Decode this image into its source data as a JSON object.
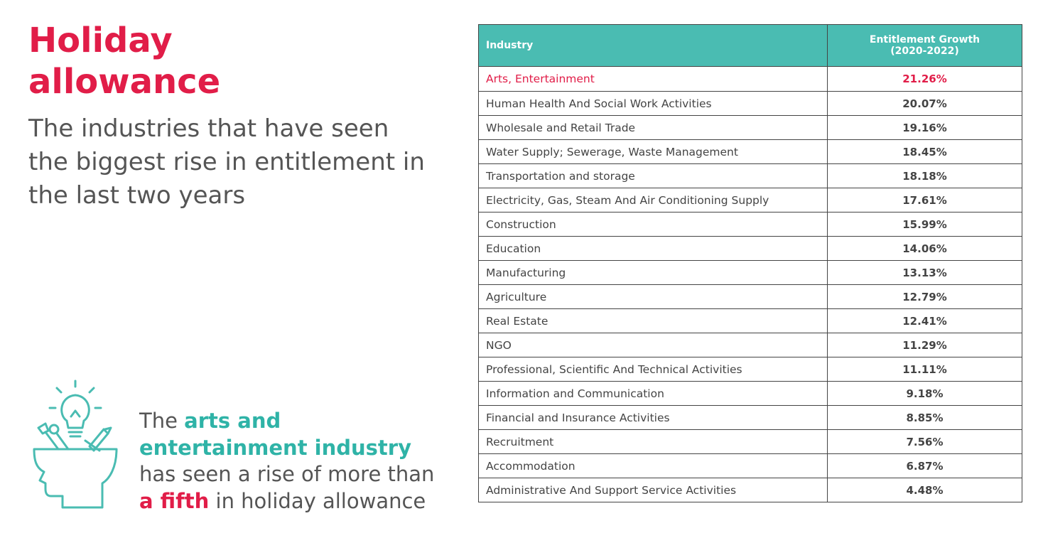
{
  "header": {
    "title_line1": "Holiday",
    "title_line2": "allowance",
    "subtitle": "The industries that have seen the biggest rise in entitlement in the last two years"
  },
  "callout": {
    "part1": "The ",
    "highlight1a": "arts and",
    "highlight1b": "entertainment industry",
    "part2": "has seen a rise of more than",
    "highlight2": "a fifth",
    "part3": " in holiday allowance"
  },
  "icons": {
    "illustration": "head-with-lightbulb-and-tools-icon"
  },
  "colors": {
    "accent_red": "#e11d48",
    "teal": "#4abcb2",
    "teal_text": "#2fb3a7",
    "body_text": "#555555"
  },
  "chart_data": {
    "type": "table",
    "columns": [
      "Industry",
      "Entitlement Growth",
      "(2020-2022)"
    ],
    "rows": [
      {
        "industry": "Arts, Entertainment",
        "growth": "21.26%",
        "value": 21.26
      },
      {
        "industry": "Human Health And Social Work Activities",
        "growth": "20.07%",
        "value": 20.07
      },
      {
        "industry": "Wholesale and Retail Trade",
        "growth": "19.16%",
        "value": 19.16
      },
      {
        "industry": "Water Supply; Sewerage, Waste Management",
        "growth": "18.45%",
        "value": 18.45
      },
      {
        "industry": "Transportation and storage",
        "growth": "18.18%",
        "value": 18.18
      },
      {
        "industry": "Electricity, Gas, Steam And Air Conditioning Supply",
        "growth": "17.61%",
        "value": 17.61
      },
      {
        "industry": "Construction",
        "growth": "15.99%",
        "value": 15.99
      },
      {
        "industry": "Education",
        "growth": "14.06%",
        "value": 14.06
      },
      {
        "industry": "Manufacturing",
        "growth": "13.13%",
        "value": 13.13
      },
      {
        "industry": "Agriculture",
        "growth": "12.79%",
        "value": 12.79
      },
      {
        "industry": "Real Estate",
        "growth": "12.41%",
        "value": 12.41
      },
      {
        "industry": "NGO",
        "growth": "11.29%",
        "value": 11.29
      },
      {
        "industry": "Professional, Scientific And Technical Activities",
        "growth": "11.11%",
        "value": 11.11
      },
      {
        "industry": "Information and Communication",
        "growth": "9.18%",
        "value": 9.18
      },
      {
        "industry": "Financial and Insurance Activities",
        "growth": "8.85%",
        "value": 8.85
      },
      {
        "industry": "Recruitment",
        "growth": "7.56%",
        "value": 7.56
      },
      {
        "industry": "Accommodation",
        "growth": "6.87%",
        "value": 6.87
      },
      {
        "industry": "Administrative And Support Service Activities",
        "growth": "4.48%",
        "value": 4.48
      }
    ],
    "highlight_row": 0
  }
}
